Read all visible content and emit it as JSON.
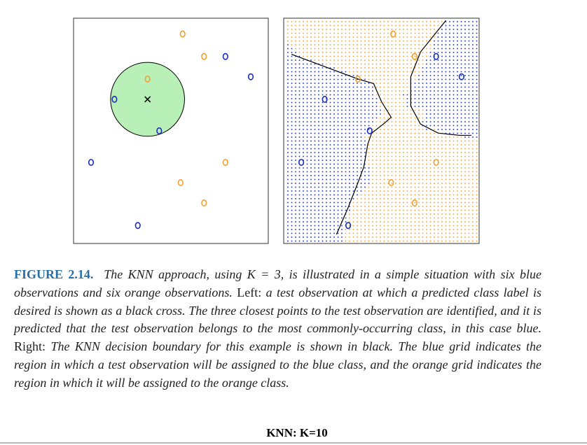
{
  "chart_data": [
    {
      "type": "scatter",
      "xlim": [
        0,
        1
      ],
      "ylim": [
        0,
        1
      ],
      "series": [
        {
          "color": "#f0a030",
          "marker": "o",
          "x": [
            0.56,
            0.67,
            0.38,
            0.78,
            0.55,
            0.67
          ],
          "y": [
            0.93,
            0.83,
            0.73,
            0.36,
            0.27,
            0.18
          ]
        },
        {
          "color": "#1a2fc0",
          "marker": "o",
          "x": [
            0.78,
            0.91,
            0.21,
            0.44,
            0.09,
            0.33
          ],
          "y": [
            0.83,
            0.74,
            0.64,
            0.5,
            0.36,
            0.08
          ]
        },
        {
          "color": "#000000",
          "marker": "x",
          "x": [
            0.38
          ],
          "y": [
            0.64
          ]
        }
      ],
      "neighborhood": {
        "x": 0.38,
        "y": 0.64,
        "radius": 0.19,
        "color": "#b8f0b8"
      }
    },
    {
      "type": "scatter",
      "xlim": [
        0,
        1
      ],
      "ylim": [
        0,
        1
      ],
      "series": [
        {
          "color": "#f0a030",
          "marker": "o",
          "x": [
            0.56,
            0.67,
            0.38,
            0.78,
            0.55,
            0.67
          ],
          "y": [
            0.93,
            0.83,
            0.73,
            0.36,
            0.27,
            0.18
          ]
        },
        {
          "color": "#1a2fc0",
          "marker": "o",
          "x": [
            0.78,
            0.91,
            0.21,
            0.44,
            0.09,
            0.33
          ],
          "y": [
            0.83,
            0.74,
            0.64,
            0.5,
            0.36,
            0.08
          ]
        }
      ],
      "boundary": [
        {
          "x": [
            0.04,
            0.38,
            0.46,
            0.5,
            0.55,
            0.51,
            0.45,
            0.43,
            0.41,
            0.38,
            0.33,
            0.27
          ],
          "y": [
            0.84,
            0.73,
            0.71,
            0.63,
            0.56,
            0.53,
            0.49,
            0.44,
            0.34,
            0.27,
            0.16,
            0.04
          ]
        },
        {
          "x": [
            0.83,
            0.7,
            0.65,
            0.65,
            0.7,
            0.79,
            0.9,
            0.96
          ],
          "y": [
            0.99,
            0.85,
            0.74,
            0.61,
            0.53,
            0.49,
            0.48,
            0.48
          ]
        }
      ]
    }
  ],
  "caption": {
    "label": "FIGURE 2.14.",
    "part1": "The KNN approach, using K = 3, is illustrated in a simple situation with six blue observations and six orange observations.",
    "left": "Left:",
    "part2": "a test observation at which a predicted class label is desired is shown as a black cross. The three closest points to the test observation are identified, and it is predicted that the test observation belongs to the most commonly-occurring class, in this case blue.",
    "right": "Right:",
    "part3": "The KNN decision boundary for this example is shown in black. The blue grid indicates the region in which a test observation will be assigned to the blue class, and the orange grid indicates the region in which it will be assigned to the orange class."
  },
  "footer": "KNN: K=10"
}
